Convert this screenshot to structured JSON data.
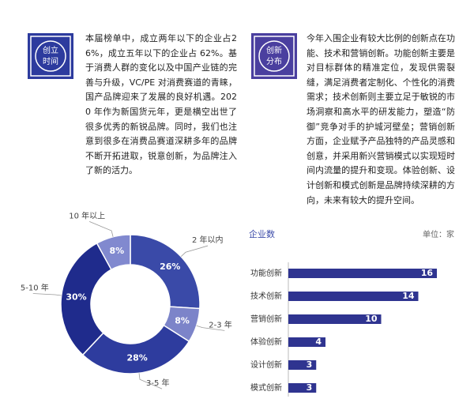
{
  "blocks": [
    {
      "icon": [
        "创立",
        "时间"
      ],
      "text": "本届榜单中，成立两年以下的企业占26%，成立五年以下的企业占 62%。基于消费人群的变化以及中国产业链的完善与升级，VC/PE 对消费赛道的青睐，国产品牌迎来了发展的良好机遇。2020 年作为新国货元年，更是横空出世了很多优秀的新锐品牌。同时，我们也注意到很多在消费品赛道深耕多年的品牌不断开拓进取，锐意创新，为品牌注入了新的活力。"
    },
    {
      "icon": [
        "创新",
        "分布"
      ],
      "text": "今年入围企业有较大比例的创新点在功能、技术和营销创新。功能创新主要是对目标群体的精准定位，发现供需裂缝，满足消费者定制化、个性化的消费需求；技术创新则主要立足于敏锐的市场洞察和高水平的研发能力，塑造“防御”竞争对手的护城河壁垒；营销创新方面，企业赋予产品独特的产品灵感和创意，并采用新兴营销模式以实现短时间内流量的提升和变现。体验创新、设计创新和模式创新是品牌持续深耕的方向，未来有较大的提升空间。"
    }
  ],
  "chart_data": [
    {
      "type": "pie",
      "categories": [
        "2 年以内",
        "2-3 年",
        "3-5 年",
        "5-10 年",
        "10 年以上"
      ],
      "values": [
        26,
        8,
        28,
        30,
        8
      ],
      "value_labels": [
        "26%",
        "8%",
        "28%",
        "30%",
        "8%"
      ],
      "colors": [
        "#3a4aa8",
        "#7c84c9",
        "#2e3c9e",
        "#1f2b8c",
        "#8189cf"
      ]
    },
    {
      "type": "bar",
      "title": "企业数",
      "subtitle": "单位：家",
      "categories": [
        "功能创新",
        "技术创新",
        "营销创新",
        "体验创新",
        "设计创新",
        "模式创新"
      ],
      "values": [
        16,
        14,
        10,
        4,
        3,
        3
      ],
      "color": "#2f3490"
    }
  ]
}
